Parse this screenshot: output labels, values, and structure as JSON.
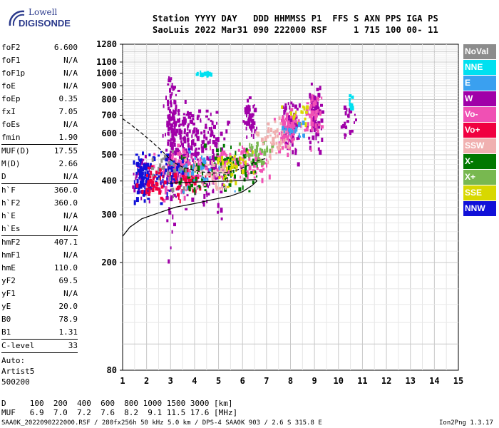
{
  "logo": {
    "line1": "Lowell",
    "line2": "DIGISONDE"
  },
  "header": {
    "row1": "Station YYYY DAY   DDD HHMMSS P1  FFS S AXN PPS IGA PS",
    "row2": "SaoLuis 2022 Mar31 090 222000 RSF     1 715 100 00- 11"
  },
  "params": {
    "group1": [
      {
        "k": "foF2",
        "v": "6.600"
      },
      {
        "k": "foF1",
        "v": "N/A"
      },
      {
        "k": "foF1p",
        "v": "N/A"
      },
      {
        "k": "foE",
        "v": "N/A"
      },
      {
        "k": "foEp",
        "v": "0.35"
      },
      {
        "k": "fxI",
        "v": "7.05"
      },
      {
        "k": "foEs",
        "v": "N/A"
      },
      {
        "k": "fmin",
        "v": "1.90"
      }
    ],
    "group2": [
      {
        "k": "MUF(D)",
        "v": "17.55"
      },
      {
        "k": "M(D)",
        "v": "2.66"
      },
      {
        "k": "D",
        "v": "N/A"
      }
    ],
    "group3": [
      {
        "k": "h`F",
        "v": "360.0"
      },
      {
        "k": "h`F2",
        "v": "360.0"
      },
      {
        "k": "h`E",
        "v": "N/A"
      },
      {
        "k": "h`Es",
        "v": "N/A"
      }
    ],
    "group4": [
      {
        "k": "hmF2",
        "v": "407.1"
      },
      {
        "k": "hmF1",
        "v": "N/A"
      },
      {
        "k": "hmE",
        "v": "110.0"
      },
      {
        "k": "yF2",
        "v": "69.5"
      },
      {
        "k": "yF1",
        "v": "N/A"
      },
      {
        "k": "yE",
        "v": "20.0"
      },
      {
        "k": "B0",
        "v": "78.9"
      },
      {
        "k": "B1",
        "v": "1.31"
      }
    ],
    "group5": [
      {
        "k": "C-level",
        "v": "33"
      }
    ],
    "autoscale": {
      "l1": "Auto:",
      "l2": "Artist5",
      "l3": "500200"
    }
  },
  "legend": [
    {
      "label": "NoVal",
      "color": "#8c8c8c"
    },
    {
      "label": "NNE",
      "color": "#00e0f0"
    },
    {
      "label": "E",
      "color": "#3aa0f0"
    },
    {
      "label": "W",
      "color": "#a000a8"
    },
    {
      "label": "Vo-",
      "color": "#f050b4"
    },
    {
      "label": "Vo+",
      "color": "#f00040"
    },
    {
      "label": "SSW",
      "color": "#f0b0b0"
    },
    {
      "label": "X-",
      "color": "#007800"
    },
    {
      "label": "X+",
      "color": "#78b850"
    },
    {
      "label": "SSE",
      "color": "#d8d800"
    },
    {
      "label": "NNW",
      "color": "#1010d8"
    }
  ],
  "footer": {
    "line1": "D     100  200  400  600  800 1000 1500 3000 [km]",
    "line2": "MUF   6.9  7.0  7.2  7.6  8.2  9.1 11.5 17.6 [MHz]",
    "status": "SAA0K_2022090222000.RSF / 280fx256h 50 kHz 5.0 km / DPS-4 SAA0K 903 / 2.6 S 315.8 E",
    "version": "Ion2Png 1.3.17"
  },
  "chart_data": {
    "type": "scatter",
    "title": "",
    "xlabel": "",
    "ylabel": "",
    "xlim": [
      1,
      15
    ],
    "ylim": [
      80,
      1280
    ],
    "x_ticks": [
      1,
      2,
      3,
      4,
      5,
      6,
      7,
      8,
      9,
      10,
      11,
      12,
      13,
      14,
      15
    ],
    "y_ticks": [
      80,
      200,
      300,
      400,
      500,
      600,
      700,
      800,
      900,
      1000,
      1100,
      1280
    ],
    "y_scale": "log",
    "grid": true,
    "series": [
      {
        "name": "W",
        "color": "#a000a8",
        "clusters": [
          {
            "x": 3.0,
            "y": 600,
            "sx": 0.12,
            "sy": 180,
            "n": 140
          },
          {
            "x": 3.6,
            "y": 560,
            "sx": 0.35,
            "sy": 110,
            "n": 160
          },
          {
            "x": 4.7,
            "y": 520,
            "sx": 0.3,
            "sy": 90,
            "n": 110
          },
          {
            "x": 6.3,
            "y": 690,
            "sx": 0.12,
            "sy": 50,
            "n": 60
          },
          {
            "x": 8.0,
            "y": 650,
            "sx": 0.18,
            "sy": 70,
            "n": 80
          },
          {
            "x": 9.0,
            "y": 720,
            "sx": 0.12,
            "sy": 90,
            "n": 90
          },
          {
            "x": 10.4,
            "y": 680,
            "sx": 0.14,
            "sy": 40,
            "n": 25
          },
          {
            "x": 1.8,
            "y": 420,
            "sx": 0.2,
            "sy": 40,
            "n": 40
          }
        ]
      },
      {
        "name": "Vo-",
        "color": "#f050b4",
        "clusters": [
          {
            "x": 3.4,
            "y": 440,
            "sx": 0.45,
            "sy": 40,
            "n": 140
          },
          {
            "x": 5.8,
            "y": 470,
            "sx": 0.6,
            "sy": 35,
            "n": 110
          },
          {
            "x": 7.9,
            "y": 640,
            "sx": 0.25,
            "sy": 60,
            "n": 70
          },
          {
            "x": 8.9,
            "y": 720,
            "sx": 0.15,
            "sy": 70,
            "n": 45
          }
        ]
      },
      {
        "name": "NNW",
        "color": "#1010d8",
        "clusters": [
          {
            "x": 1.8,
            "y": 420,
            "sx": 0.18,
            "sy": 40,
            "n": 90
          },
          {
            "x": 2.9,
            "y": 430,
            "sx": 0.4,
            "sy": 45,
            "n": 60
          }
        ]
      },
      {
        "name": "Vo+",
        "color": "#f00040",
        "clusters": [
          {
            "x": 2.2,
            "y": 400,
            "sx": 0.25,
            "sy": 25,
            "n": 40
          },
          {
            "x": 3.5,
            "y": 400,
            "sx": 0.4,
            "sy": 25,
            "n": 50
          }
        ]
      },
      {
        "name": "X-",
        "color": "#007800",
        "clusters": [
          {
            "x": 5.6,
            "y": 460,
            "sx": 0.55,
            "sy": 40,
            "n": 70
          },
          {
            "x": 3.8,
            "y": 420,
            "sx": 0.4,
            "sy": 30,
            "n": 30
          }
        ]
      },
      {
        "name": "X+",
        "color": "#78b850",
        "clusters": [
          {
            "x": 6.6,
            "y": 520,
            "sx": 0.3,
            "sy": 30,
            "n": 40
          }
        ]
      },
      {
        "name": "SSE",
        "color": "#d8d800",
        "clusters": [
          {
            "x": 5.5,
            "y": 470,
            "sx": 0.4,
            "sy": 40,
            "n": 40
          },
          {
            "x": 8.3,
            "y": 710,
            "sx": 0.3,
            "sy": 40,
            "n": 15
          }
        ]
      },
      {
        "name": "SSW",
        "color": "#f0b0b0",
        "clusters": [
          {
            "x": 7.3,
            "y": 580,
            "sx": 0.35,
            "sy": 50,
            "n": 50
          },
          {
            "x": 4.5,
            "y": 430,
            "sx": 0.5,
            "sy": 30,
            "n": 40
          }
        ]
      },
      {
        "name": "NNE",
        "color": "#00e0f0",
        "clusters": [
          {
            "x": 4.5,
            "y": 1010,
            "sx": 0.25,
            "sy": 8,
            "n": 18
          },
          {
            "x": 10.5,
            "y": 780,
            "sx": 0.06,
            "sy": 40,
            "n": 12
          }
        ]
      },
      {
        "name": "E",
        "color": "#3aa0f0",
        "clusters": [
          {
            "x": 4.3,
            "y": 440,
            "sx": 0.6,
            "sy": 40,
            "n": 30
          },
          {
            "x": 8.1,
            "y": 620,
            "sx": 0.3,
            "sy": 30,
            "n": 15
          }
        ]
      },
      {
        "name": "NoVal",
        "color": "#8c8c8c",
        "clusters": [
          {
            "x": 2.8,
            "y": 450,
            "sx": 0.4,
            "sy": 40,
            "n": 25
          }
        ]
      }
    ],
    "profile_solid": {
      "x": [
        1.0,
        1.3,
        1.8,
        2.5,
        3.2,
        4.0,
        4.8,
        5.5,
        6.0,
        6.4,
        6.6,
        6.55,
        6.3,
        5.6,
        4.6,
        3.6,
        2.9
      ],
      "y": [
        250,
        270,
        290,
        305,
        320,
        330,
        342,
        352,
        365,
        385,
        400,
        405,
        404,
        400,
        398,
        395,
        392
      ]
    },
    "profile_dashed": {
      "x": [
        1.0,
        1.3,
        1.7,
        2.1,
        2.5,
        2.8,
        3.0,
        3.2,
        3.5,
        3.9,
        4.3,
        4.8,
        5.3,
        5.8,
        6.2,
        6.5,
        6.8,
        7.0
      ],
      "y": [
        680,
        650,
        610,
        570,
        530,
        500,
        480,
        465,
        450,
        440,
        432,
        428,
        430,
        440,
        455,
        470,
        480,
        485
      ]
    }
  }
}
